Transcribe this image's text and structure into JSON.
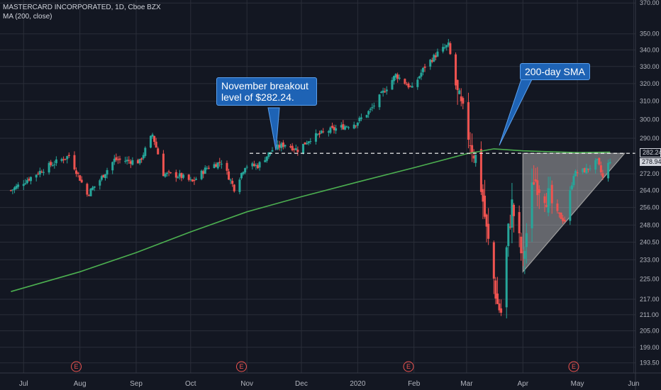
{
  "header": {
    "symbol_line": "MASTERCARD INCORPORATED, 1D, Cboe BZX",
    "indicator_line": "MA (200, close)"
  },
  "colors": {
    "background": "#131722",
    "up": "#26a69a",
    "down": "#ef5350",
    "ma": "#4caf50",
    "grid": "#2a2e39",
    "axis_text": "#b2b5be",
    "callout": "#1e63b5"
  },
  "annotations": {
    "breakout_callout": "November breakout level of $282.24.",
    "sma_callout": "200-day SMA"
  },
  "price_tags": {
    "breakout": "282.24",
    "last": "278.94"
  },
  "chart_data": {
    "type": "candlestick",
    "title": "MASTERCARD INCORPORATED, 1D, Cboe BZX",
    "y_scale": "log",
    "ylim": [
      190,
      372
    ],
    "y_ticks": [
      370.0,
      350.0,
      340.0,
      330.0,
      320.0,
      310.0,
      300.0,
      290.0,
      282.24,
      278.94,
      272.0,
      264.0,
      256.0,
      248.0,
      240.5,
      233.0,
      225.0,
      217.0,
      211.0,
      205.0,
      199.0,
      193.5
    ],
    "x_ticks": [
      "Jul",
      "Aug",
      "Sep",
      "Oct",
      "Nov",
      "Dec",
      "2020",
      "Feb",
      "Mar",
      "Apr",
      "May",
      "Jun"
    ],
    "earnings_markers": [
      "E",
      "E",
      "E",
      "E"
    ],
    "earnings_dates": [
      "2019-07-30",
      "2019-10-29",
      "2020-01-29",
      "2020-04-29"
    ],
    "grid": true,
    "horizontal_level": 282.24,
    "path_anchors": [
      [
        "2019-06-24",
        264
      ],
      [
        "2019-07-01",
        268
      ],
      [
        "2019-07-15",
        276
      ],
      [
        "2019-07-26",
        281
      ],
      [
        "2019-08-05",
        262
      ],
      [
        "2019-08-12",
        269
      ],
      [
        "2019-08-20",
        279
      ],
      [
        "2019-09-03",
        278
      ],
      [
        "2019-09-10",
        292
      ],
      [
        "2019-09-16",
        272
      ],
      [
        "2019-09-25",
        271
      ],
      [
        "2019-10-02",
        268
      ],
      [
        "2019-10-10",
        275
      ],
      [
        "2019-10-18",
        278
      ],
      [
        "2019-10-25",
        265
      ],
      [
        "2019-10-31",
        276
      ],
      [
        "2019-11-07",
        276
      ],
      [
        "2019-11-15",
        284
      ],
      [
        "2019-11-22",
        287
      ],
      [
        "2019-11-29",
        284
      ],
      [
        "2019-12-06",
        290
      ],
      [
        "2019-12-16",
        294
      ],
      [
        "2019-12-31",
        298
      ],
      [
        "2020-01-08",
        305
      ],
      [
        "2020-01-15",
        315
      ],
      [
        "2020-01-22",
        325
      ],
      [
        "2020-01-31",
        317
      ],
      [
        "2020-02-07",
        330
      ],
      [
        "2020-02-14",
        338
      ],
      [
        "2020-02-20",
        343
      ],
      [
        "2020-02-25",
        313
      ],
      [
        "2020-03-02",
        292
      ],
      [
        "2020-03-06",
        280
      ],
      [
        "2020-03-09",
        266
      ],
      [
        "2020-03-12",
        245
      ],
      [
        "2020-03-16",
        225
      ],
      [
        "2020-03-18",
        215
      ],
      [
        "2020-03-20",
        212
      ],
      [
        "2020-03-24",
        245
      ],
      [
        "2020-03-26",
        257
      ],
      [
        "2020-04-01",
        232
      ],
      [
        "2020-04-07",
        270
      ],
      [
        "2020-04-14",
        262
      ],
      [
        "2020-04-20",
        253
      ],
      [
        "2020-04-24",
        250
      ],
      [
        "2020-04-29",
        272
      ],
      [
        "2020-05-06",
        274
      ],
      [
        "2020-05-12",
        278
      ],
      [
        "2020-05-15",
        270
      ],
      [
        "2020-05-19",
        278.94
      ]
    ],
    "ma200_anchors": [
      [
        "2019-06-24",
        220
      ],
      [
        "2019-08-01",
        228
      ],
      [
        "2019-09-01",
        236
      ],
      [
        "2019-10-01",
        245
      ],
      [
        "2019-11-01",
        254
      ],
      [
        "2019-12-01",
        261
      ],
      [
        "2020-01-01",
        268
      ],
      [
        "2020-02-01",
        275
      ],
      [
        "2020-03-01",
        282
      ],
      [
        "2020-03-16",
        284.5
      ],
      [
        "2020-04-01",
        283.5
      ],
      [
        "2020-05-01",
        282.6
      ],
      [
        "2020-05-19",
        282.8
      ]
    ],
    "triangle": {
      "top_left": [
        "2020-04-01",
        282.24
      ],
      "top_right": [
        "2020-05-27",
        282.24
      ],
      "bottom": [
        "2020-04-01",
        228
      ]
    },
    "series": [
      {
        "name": "MA (200, close)",
        "type": "line"
      }
    ]
  }
}
